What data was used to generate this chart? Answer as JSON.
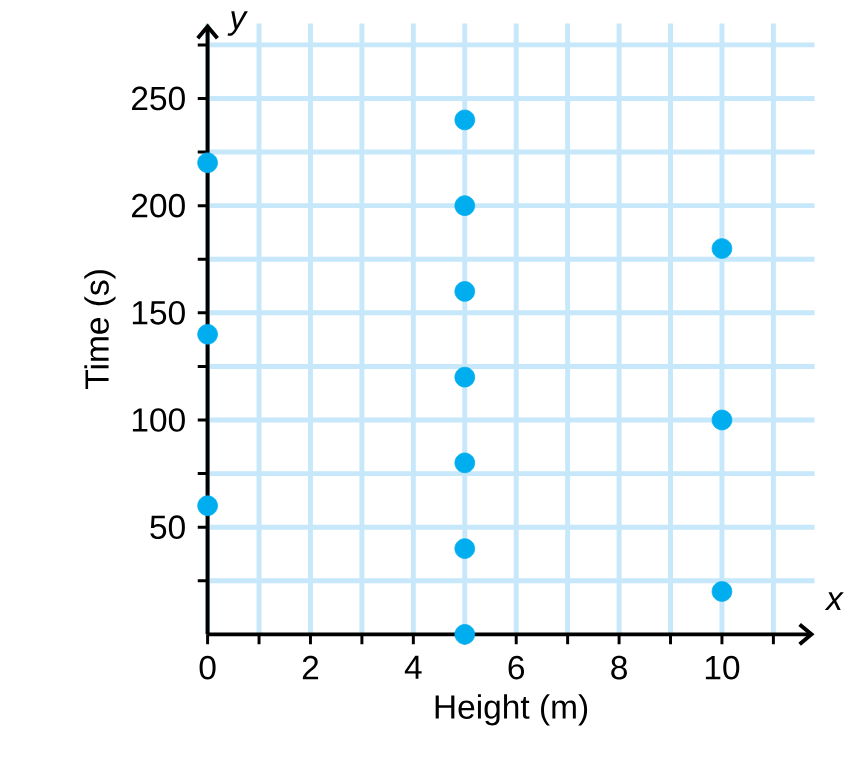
{
  "chart_data": {
    "type": "scatter",
    "xlabel": "Height (m)",
    "ylabel": "Time (s)",
    "annotations": [
      "x",
      "y"
    ],
    "x": [
      0,
      0,
      0,
      5,
      5,
      5,
      5,
      5,
      5,
      5,
      10,
      10,
      10
    ],
    "values": [
      60,
      140,
      220,
      0,
      40,
      80,
      120,
      160,
      200,
      240,
      20,
      100,
      180
    ],
    "color": "#00aeef",
    "marker": "circle",
    "grid": true,
    "xlim": [
      0,
      11.8
    ],
    "ylim": [
      0,
      285
    ],
    "xticks": [
      {
        "value": 0,
        "label": "0"
      },
      {
        "value": 1,
        "label": null
      },
      2,
      {
        "value": 3,
        "label": null
      },
      4,
      {
        "value": 5,
        "label": null
      },
      6,
      {
        "value": 7,
        "label": null
      },
      8,
      {
        "value": 9,
        "label": null
      },
      10,
      {
        "value": 11,
        "label": null
      }
    ],
    "yticks": [
      {
        "value": 25,
        "label": null
      },
      50,
      {
        "value": 75,
        "label": null
      },
      100,
      {
        "value": 125,
        "label": null
      },
      150,
      {
        "value": 175,
        "label": null
      },
      200,
      {
        "value": 225,
        "label": null
      },
      250,
      {
        "value": 275,
        "label": null
      }
    ]
  }
}
